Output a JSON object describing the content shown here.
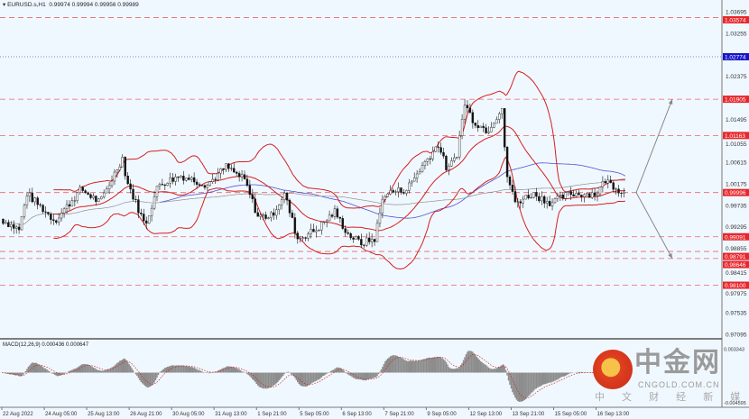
{
  "header": {
    "symbol": "EURUSD.s,H1",
    "ohlc": "0.99974 0.99994 0.99956 0.99989"
  },
  "macd_header": "MACD(12,26,9) 0.000436 0.000647",
  "watermark": {
    "name": "中金网",
    "domain": "CNGOLD.COM.CN",
    "tagline": "中 文 财 经 新 媒 体"
  },
  "chart_data": {
    "type": "candlestick",
    "symbol": "EURUSD.s",
    "timeframe": "H1",
    "ylim": [
      0.969,
      1.038
    ],
    "y_ticks": [
      "1.03695",
      "1.03255",
      "1.02375",
      "1.01495",
      "1.01055",
      "1.00615",
      "1.00175",
      "0.99735",
      "0.99295",
      "0.98855",
      "0.98415",
      "0.97975",
      "0.97535",
      "0.97095"
    ],
    "x_ticks": [
      "22 Aug 2022",
      "24 Aug 05:00",
      "25 Aug 13:00",
      "26 Aug 21:00",
      "30 Aug 05:00",
      "31 Aug 13:00",
      "1 Sep 21:00",
      "5 Sep 05:00",
      "6 Sep 13:00",
      "7 Sep 21:00",
      "9 Sep 05:00",
      "12 Sep 13:00",
      "13 Sep 21:00",
      "15 Sep 05:00",
      "16 Sep 13:00"
    ],
    "x_tick_interval_bars": 32,
    "price_path": [
      [
        0,
        0.99455
      ],
      [
        14,
        0.99234
      ],
      [
        20,
        0.99972
      ],
      [
        41,
        0.99419
      ],
      [
        61,
        1.00064
      ],
      [
        75,
        0.99787
      ],
      [
        92,
        1.00709
      ],
      [
        95,
        1.00248
      ],
      [
        102,
        0.99787
      ],
      [
        109,
        0.99326
      ],
      [
        119,
        1.00156
      ],
      [
        136,
        1.0034
      ],
      [
        156,
        1.00156
      ],
      [
        170,
        1.00525
      ],
      [
        184,
        1.00248
      ],
      [
        194,
        0.99511
      ],
      [
        204,
        0.99511
      ],
      [
        214,
        0.99972
      ],
      [
        224,
        0.9905
      ],
      [
        238,
        0.99234
      ],
      [
        252,
        0.99603
      ],
      [
        262,
        0.99142
      ],
      [
        272,
        0.98958
      ],
      [
        282,
        0.9905
      ],
      [
        289,
        0.99972
      ],
      [
        306,
        1.00064
      ],
      [
        320,
        1.00617
      ],
      [
        330,
        1.00985
      ],
      [
        337,
        1.00432
      ],
      [
        344,
        1.00801
      ],
      [
        350,
        1.01815
      ],
      [
        357,
        1.01446
      ],
      [
        367,
        1.01262
      ],
      [
        378,
        1.01723
      ],
      [
        381,
        1.00432
      ],
      [
        388,
        0.99787
      ],
      [
        401,
        0.99972
      ],
      [
        415,
        0.99787
      ],
      [
        429,
        0.99972
      ],
      [
        449,
        0.99972
      ],
      [
        456,
        1.00248
      ],
      [
        466,
        1.00064
      ],
      [
        470,
        0.99989
      ]
    ],
    "levels": [
      {
        "price": "1.03574",
        "color": "#e8262b",
        "style": "dashed"
      },
      {
        "price": "1.02774",
        "color": "#1515c8",
        "style": "dotted"
      },
      {
        "price": "1.01905",
        "color": "#e8262b",
        "style": "dashed"
      },
      {
        "price": "1.01163",
        "color": "#e8262b",
        "style": "dashed"
      },
      {
        "price": "0.99996",
        "color": "#e8262b",
        "style": "dashed"
      },
      {
        "price": "0.99091",
        "color": "#e8262b",
        "style": "dashed"
      },
      {
        "price": "0.98791",
        "color": "#e8262b",
        "style": "dashed"
      },
      {
        "price": "0.98646",
        "color": "#e8262b",
        "style": "dashed"
      },
      {
        "price": "0.98100",
        "color": "#e8262b",
        "style": "dashed"
      }
    ],
    "indicators": {
      "bollinger_color": "#d42020",
      "ma_color": "#5050d0",
      "trend_ma_color": "#909090"
    },
    "projections": [
      {
        "from": 0.99996,
        "to": 1.01905
      },
      {
        "from": 0.99996,
        "to": 0.98646
      }
    ],
    "macd": {
      "params": "12,26,9",
      "y_ticks": [
        "0.003343",
        "-0.004595"
      ],
      "hist_color": "#8c8c8c",
      "signal_color": "#d42020"
    }
  }
}
